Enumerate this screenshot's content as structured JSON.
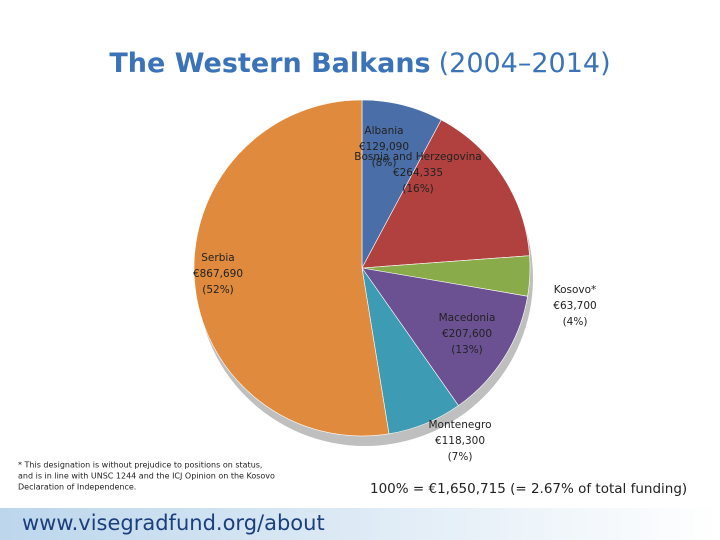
{
  "chart_data": {
    "type": "pie",
    "title": "The Western Balkans",
    "subtitle": "(2004–2014)",
    "categories": [
      "Albania",
      "Bosnia and Herzegovina",
      "Kosovo*",
      "Macedonia",
      "Montenegro",
      "Serbia"
    ],
    "values": [
      129090,
      264335,
      63700,
      207600,
      118300,
      867690
    ],
    "value_labels": [
      "€129,090",
      "€264,335",
      "€63,700",
      "€207,600",
      "€118,300",
      "€867,690"
    ],
    "shares": [
      8,
      16,
      4,
      13,
      7,
      52
    ],
    "share_labels": [
      "(8%)",
      "(16%)",
      "(4%)",
      "(13%)",
      "(7%)",
      "(52%)"
    ],
    "colors": [
      "#4a6fa8",
      "#b0413e",
      "#8aab4a",
      "#6c5192",
      "#3d9bb3",
      "#e08a3e"
    ],
    "footnote": [
      "* This designation is without prejudice to positions on status,",
      "and is in line with UNSC 1244 and the ICJ Opinion on the Kosovo",
      "Declaration of Independence."
    ],
    "total_note": "100% = €1,650,715 (= 2.67% of total funding)",
    "footer": "www.visegradfund.org/about"
  }
}
